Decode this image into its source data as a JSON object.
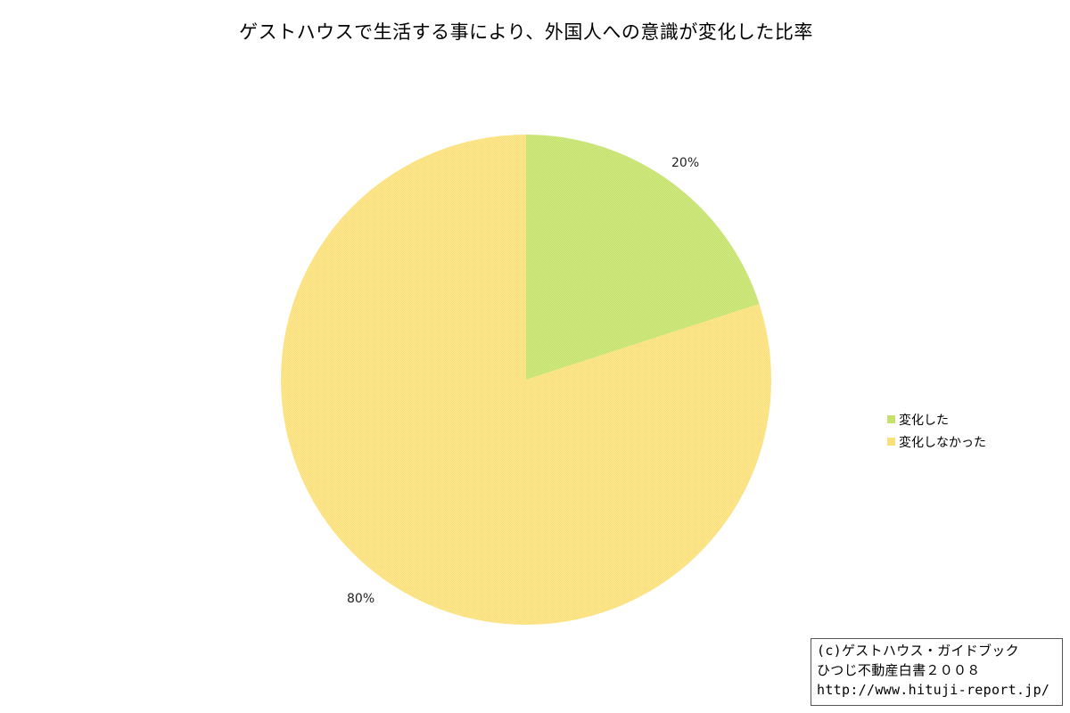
{
  "chart_data": {
    "type": "pie",
    "title": "ゲストハウスで生活する事により、外国人への意識が変化した比率",
    "slices": [
      {
        "name": "変化した",
        "value": 20,
        "label": "20%",
        "color": "#c5e26a"
      },
      {
        "name": "変化しなかった",
        "value": 80,
        "label": "80%",
        "color": "#fbe07a"
      }
    ],
    "legend_placement": "right"
  },
  "copyright": {
    "line1": "(c)ゲストハウス・ガイドブック",
    "line2": "ひつじ不動産白書２００８",
    "line3": "http://www.hituji-report.jp/"
  }
}
